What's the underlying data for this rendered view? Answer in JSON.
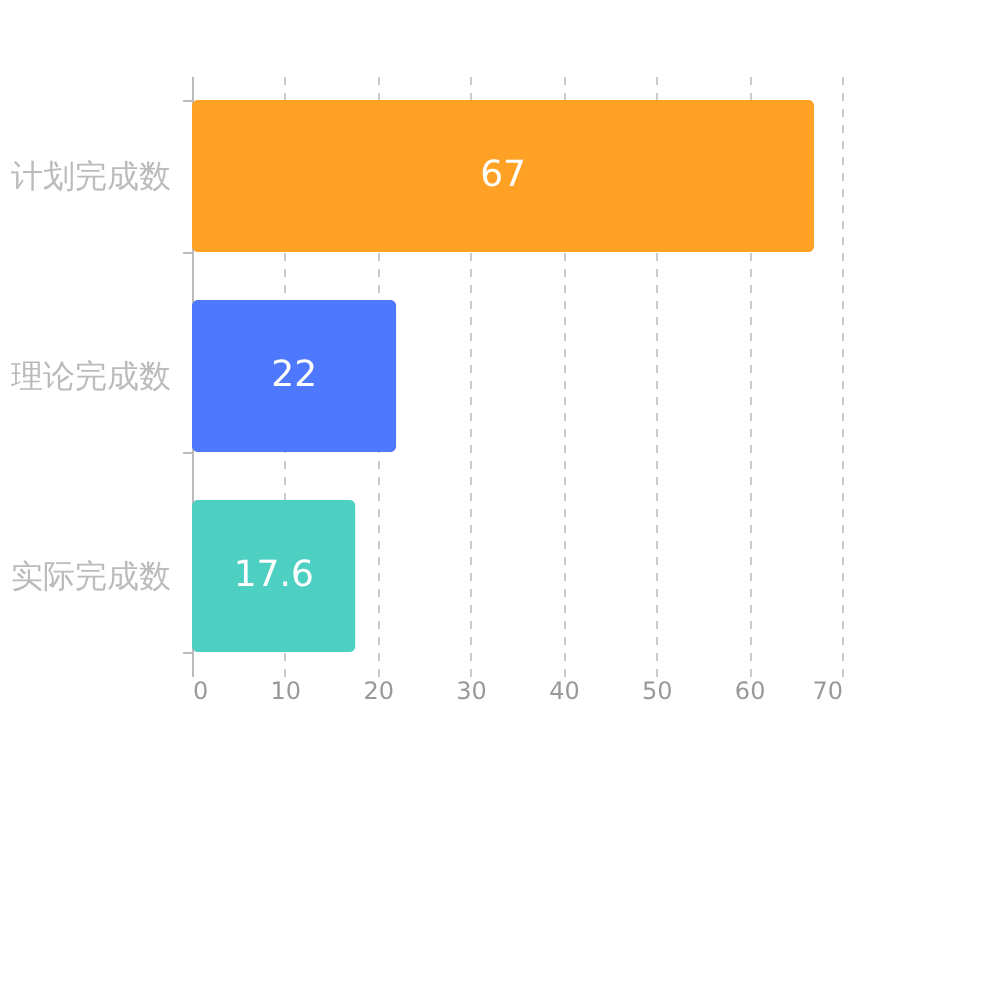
{
  "chart_data": {
    "type": "bar",
    "orientation": "horizontal",
    "categories": [
      "计划完成数",
      "理论完成数",
      "实际完成数"
    ],
    "values": [
      67,
      22,
      17.6
    ],
    "colors": [
      "#ffa124",
      "#4e79ff",
      "#4dd0c1"
    ],
    "xlim": [
      0,
      70
    ],
    "xticks": [
      0,
      10,
      20,
      30,
      40,
      50,
      60,
      70
    ],
    "grid": "x",
    "data_labels": true,
    "legend": false
  }
}
